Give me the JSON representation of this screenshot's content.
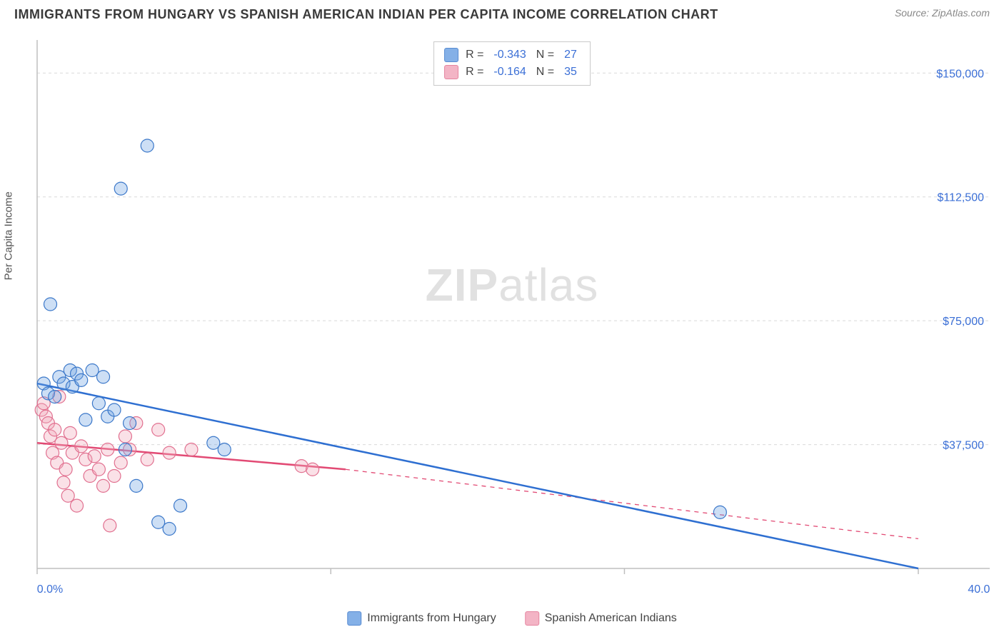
{
  "title": "IMMIGRANTS FROM HUNGARY VS SPANISH AMERICAN INDIAN PER CAPITA INCOME CORRELATION CHART",
  "source": "Source: ZipAtlas.com",
  "y_axis_label": "Per Capita Income",
  "watermark": {
    "zip": "ZIP",
    "atlas": "atlas"
  },
  "chart": {
    "type": "scatter",
    "background_color": "#ffffff",
    "grid_color": "#d9d9d9",
    "axis_color": "#bfbfbf",
    "tick_label_color": "#3b6fd6",
    "xlim": [
      0,
      40
    ],
    "ylim": [
      0,
      160000
    ],
    "x_ticks": [
      0,
      13.33,
      26.66,
      40
    ],
    "y_ticks": [
      37500,
      75000,
      112500,
      150000
    ],
    "y_tick_labels": [
      "$37,500",
      "$75,000",
      "$112,500",
      "$150,000"
    ],
    "x_start_label": "0.0%",
    "x_end_label": "40.0%",
    "marker_radius": 9,
    "marker_fill_opacity": 0.35,
    "marker_stroke_width": 1.2,
    "line_width": 2.5
  },
  "series": {
    "blue": {
      "label": "Immigrants from Hungary",
      "color": "#6fa3e3",
      "stroke": "#3a77c9",
      "line_color": "#2e6fd1",
      "R_label": "R =",
      "R": "-0.343",
      "N_label": "N =",
      "N": "27",
      "trend": {
        "x1": 0,
        "y1": 56000,
        "x2": 40,
        "y2": 0,
        "dashed": false
      },
      "points": [
        [
          0.3,
          56000
        ],
        [
          0.5,
          53000
        ],
        [
          0.6,
          80000
        ],
        [
          0.8,
          52000
        ],
        [
          1.0,
          58000
        ],
        [
          1.2,
          56000
        ],
        [
          1.5,
          60000
        ],
        [
          1.6,
          55000
        ],
        [
          1.8,
          59000
        ],
        [
          2.0,
          57000
        ],
        [
          2.2,
          45000
        ],
        [
          2.5,
          60000
        ],
        [
          2.8,
          50000
        ],
        [
          3.0,
          58000
        ],
        [
          3.2,
          46000
        ],
        [
          3.5,
          48000
        ],
        [
          3.8,
          115000
        ],
        [
          4.0,
          36000
        ],
        [
          4.2,
          44000
        ],
        [
          4.5,
          25000
        ],
        [
          5.0,
          128000
        ],
        [
          5.5,
          14000
        ],
        [
          6.0,
          12000
        ],
        [
          6.5,
          19000
        ],
        [
          8.0,
          38000
        ],
        [
          8.5,
          36000
        ],
        [
          31.0,
          17000
        ]
      ]
    },
    "pink": {
      "label": "Spanish American Indians",
      "color": "#f2a8bb",
      "stroke": "#e16f8f",
      "line_color": "#e24a74",
      "R_label": "R =",
      "R": "-0.164",
      "N_label": "N =",
      "N": "35",
      "trend_solid": {
        "x1": 0,
        "y1": 38000,
        "x2": 14,
        "y2": 30000
      },
      "trend_dashed": {
        "x1": 14,
        "y1": 30000,
        "x2": 40,
        "y2": 9000
      },
      "points": [
        [
          0.2,
          48000
        ],
        [
          0.3,
          50000
        ],
        [
          0.4,
          46000
        ],
        [
          0.5,
          44000
        ],
        [
          0.6,
          40000
        ],
        [
          0.7,
          35000
        ],
        [
          0.8,
          42000
        ],
        [
          0.9,
          32000
        ],
        [
          1.0,
          52000
        ],
        [
          1.1,
          38000
        ],
        [
          1.2,
          26000
        ],
        [
          1.3,
          30000
        ],
        [
          1.4,
          22000
        ],
        [
          1.5,
          41000
        ],
        [
          1.6,
          35000
        ],
        [
          1.8,
          19000
        ],
        [
          2.0,
          37000
        ],
        [
          2.2,
          33000
        ],
        [
          2.4,
          28000
        ],
        [
          2.6,
          34000
        ],
        [
          2.8,
          30000
        ],
        [
          3.0,
          25000
        ],
        [
          3.2,
          36000
        ],
        [
          3.3,
          13000
        ],
        [
          3.5,
          28000
        ],
        [
          3.8,
          32000
        ],
        [
          4.0,
          40000
        ],
        [
          4.2,
          36000
        ],
        [
          4.5,
          44000
        ],
        [
          5.0,
          33000
        ],
        [
          5.5,
          42000
        ],
        [
          6.0,
          35000
        ],
        [
          7.0,
          36000
        ],
        [
          12.0,
          31000
        ],
        [
          12.5,
          30000
        ]
      ]
    }
  }
}
